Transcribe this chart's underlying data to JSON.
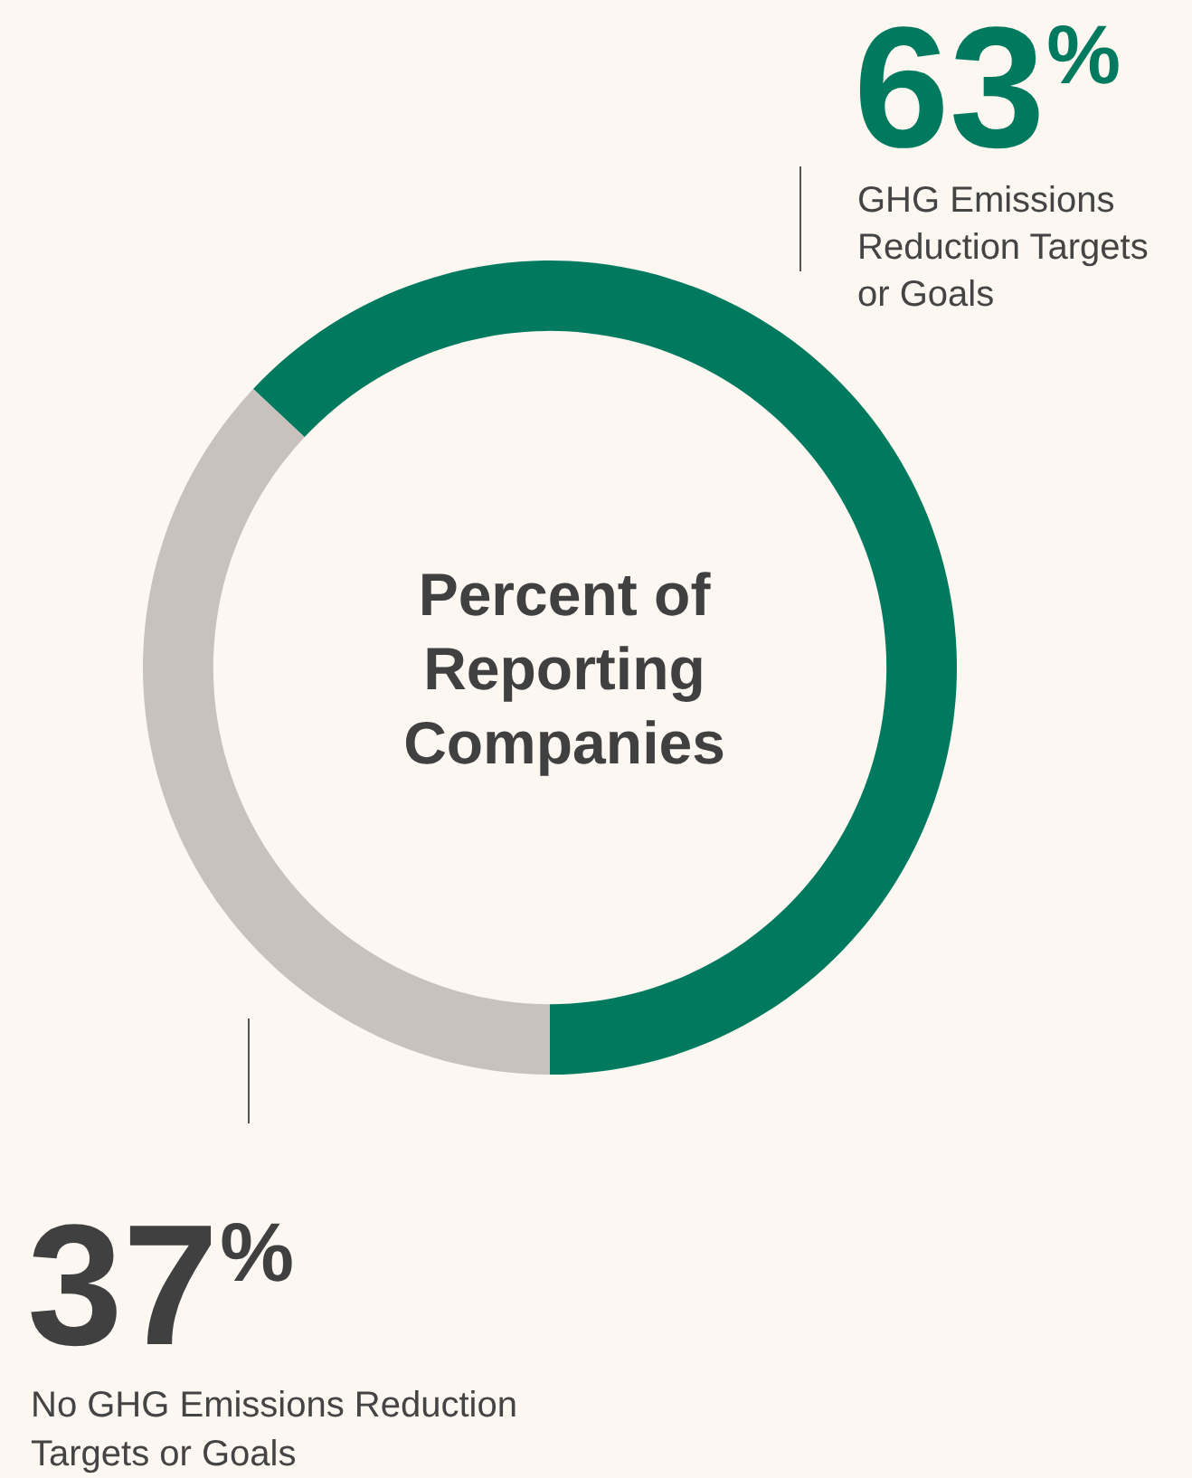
{
  "chart_data": {
    "type": "donut",
    "title": "Percent of Reporting Companies",
    "categories": [
      "GHG Emissions Reduction Targets or Goals",
      "No GHG Emissions Reduction Targets or Goals"
    ],
    "values": [
      63,
      37
    ],
    "colors": [
      "#007a5f",
      "#c9c1bb"
    ],
    "value_labels": [
      "63%",
      "37%"
    ]
  }
}
